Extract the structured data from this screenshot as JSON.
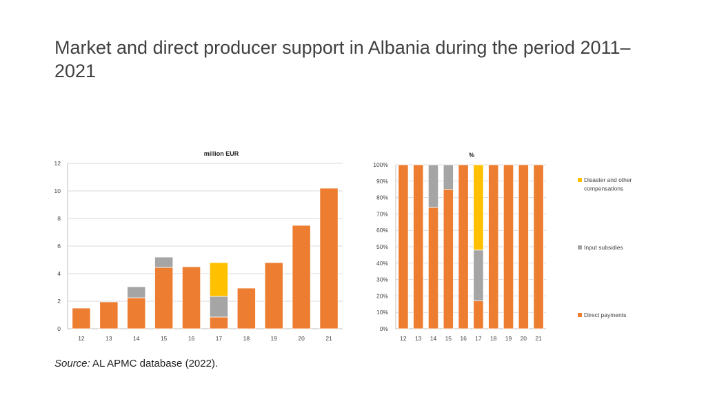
{
  "slide": {
    "title": "Market and direct producer support in Albania during the period 2011–2021",
    "source_label": "Source:",
    "source_text": "AL APMC database (2022)."
  },
  "colors": {
    "direct_payments": "#ED7D31",
    "input_subsidies": "#A5A5A5",
    "disaster": "#FFC000",
    "grid": "#D9D9D9"
  },
  "chart_data": [
    {
      "type": "bar",
      "stacked": true,
      "title": "million EUR",
      "categories": [
        "12",
        "13",
        "14",
        "15",
        "16",
        "17",
        "18",
        "19",
        "20",
        "21"
      ],
      "ylim": [
        0,
        12
      ],
      "yticks": [
        0,
        2,
        4,
        6,
        8,
        10,
        12
      ],
      "ytick_labels": [
        "0",
        "2",
        "4",
        "6",
        "8",
        "10",
        "12"
      ],
      "grid": true,
      "series": [
        {
          "key": "direct_payments",
          "values": [
            1.5,
            1.95,
            2.25,
            4.45,
            4.5,
            0.85,
            2.95,
            4.8,
            7.5,
            10.2
          ]
        },
        {
          "key": "input_subsidies",
          "values": [
            0,
            0,
            0.8,
            0.75,
            0,
            1.5,
            0,
            0,
            0,
            0
          ]
        },
        {
          "key": "disaster",
          "values": [
            0,
            0,
            0,
            0,
            0,
            2.45,
            0,
            0,
            0,
            0
          ]
        }
      ]
    },
    {
      "type": "bar",
      "stacked": true,
      "title": "%",
      "categories": [
        "12",
        "13",
        "14",
        "15",
        "16",
        "17",
        "18",
        "19",
        "20",
        "21"
      ],
      "ylim": [
        0,
        100
      ],
      "yticks": [
        0,
        10,
        20,
        30,
        40,
        50,
        60,
        70,
        80,
        90,
        100
      ],
      "ytick_labels": [
        "0%",
        "10%",
        "20%",
        "30%",
        "40%",
        "50%",
        "60%",
        "70%",
        "80%",
        "90%",
        "100%"
      ],
      "grid": true,
      "legend_position": "right",
      "series": [
        {
          "key": "direct_payments",
          "name": "Direct payments",
          "values": [
            100,
            100,
            74,
            85,
            100,
            17,
            100,
            100,
            100,
            100
          ]
        },
        {
          "key": "input_subsidies",
          "name": "Input subsidies",
          "values": [
            0,
            0,
            26,
            15,
            0,
            31,
            0,
            0,
            0,
            0
          ]
        },
        {
          "key": "disaster",
          "name": "Disaster and other compensations",
          "values": [
            0,
            0,
            0,
            0,
            0,
            52,
            0,
            0,
            0,
            0
          ]
        }
      ]
    }
  ]
}
